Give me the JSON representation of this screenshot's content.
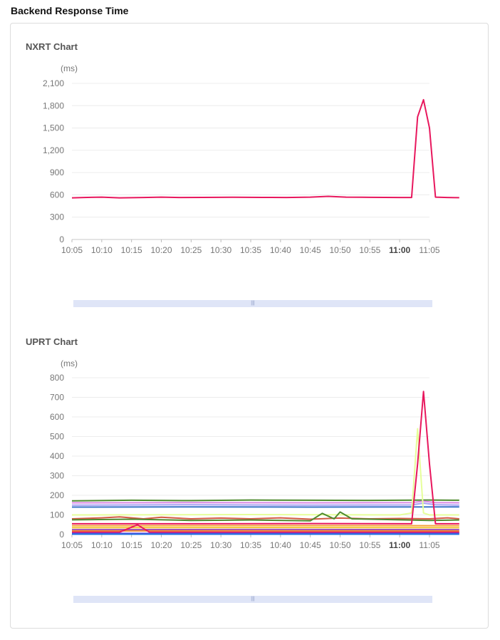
{
  "page": {
    "title": "Backend Response Time"
  },
  "chart_data": [
    {
      "type": "line",
      "title": "NXRT Chart",
      "unit_label": "(ms)",
      "x": [
        "10:05",
        "10:10",
        "10:15",
        "10:20",
        "10:25",
        "10:30",
        "10:35",
        "10:40",
        "10:45",
        "10:50",
        "10:55",
        "11:00",
        "11:05"
      ],
      "x_highlight": "11:00",
      "y_ticks": [
        "0",
        "300",
        "600",
        "900",
        "1,200",
        "1,500",
        "1,800",
        "2,100"
      ],
      "ylim": [
        0,
        2100
      ],
      "grid": true,
      "series": [
        {
          "color": "#e8175d",
          "points": [
            [
              0,
              560
            ],
            [
              2,
              565
            ],
            [
              5,
              570
            ],
            [
              8,
              560
            ],
            [
              12,
              565
            ],
            [
              15,
              570
            ],
            [
              18,
              565
            ],
            [
              22,
              566
            ],
            [
              27,
              568
            ],
            [
              32,
              566
            ],
            [
              36,
              565
            ],
            [
              40,
              570
            ],
            [
              43,
              580
            ],
            [
              46,
              570
            ],
            [
              50,
              567
            ],
            [
              55,
              565
            ],
            [
              57,
              565
            ],
            [
              58,
              1650
            ],
            [
              59,
              1880
            ],
            [
              60,
              1500
            ],
            [
              61,
              570
            ],
            [
              63,
              565
            ],
            [
              65,
              562
            ]
          ]
        }
      ]
    },
    {
      "type": "line",
      "title": "UPRT Chart",
      "unit_label": "(ms)",
      "x": [
        "10:05",
        "10:10",
        "10:15",
        "10:20",
        "10:25",
        "10:30",
        "10:35",
        "10:40",
        "10:45",
        "10:50",
        "10:55",
        "11:00",
        "11:05"
      ],
      "x_highlight": "11:00",
      "y_ticks": [
        "0",
        "100",
        "200",
        "300",
        "400",
        "500",
        "600",
        "700",
        "800"
      ],
      "ylim": [
        0,
        800
      ],
      "grid": true,
      "series": [
        {
          "color": "#4e8a2e",
          "points": [
            [
              0,
              172
            ],
            [
              10,
              175
            ],
            [
              20,
              173
            ],
            [
              30,
              176
            ],
            [
              40,
              175
            ],
            [
              50,
              174
            ],
            [
              60,
              176
            ],
            [
              65,
              175
            ]
          ]
        },
        {
          "color": "#d987e3",
          "points": [
            [
              0,
              162
            ],
            [
              20,
              163
            ],
            [
              40,
              162
            ],
            [
              57,
              163
            ],
            [
              59,
              170
            ],
            [
              61,
              163
            ],
            [
              65,
              162
            ]
          ]
        },
        {
          "color": "#a9a2f2",
          "points": [
            [
              0,
              150
            ],
            [
              20,
              152
            ],
            [
              40,
              150
            ],
            [
              57,
              151
            ],
            [
              59,
              160
            ],
            [
              61,
              152
            ],
            [
              65,
              150
            ]
          ]
        },
        {
          "color": "#3e74c9",
          "points": [
            [
              0,
              140
            ],
            [
              20,
              141
            ],
            [
              40,
              140
            ],
            [
              65,
              141
            ]
          ]
        },
        {
          "color": "#e6ff9a",
          "points": [
            [
              0,
              100
            ],
            [
              30,
              102
            ],
            [
              55,
              100
            ],
            [
              57,
              110
            ],
            [
              58,
              540
            ],
            [
              59,
              110
            ],
            [
              60,
              100
            ],
            [
              65,
              100
            ]
          ]
        },
        {
          "color": "#d25b43",
          "points": [
            [
              0,
              80
            ],
            [
              5,
              85
            ],
            [
              8,
              90
            ],
            [
              12,
              80
            ],
            [
              15,
              88
            ],
            [
              20,
              80
            ],
            [
              25,
              84
            ],
            [
              30,
              80
            ],
            [
              35,
              85
            ],
            [
              40,
              78
            ],
            [
              45,
              84
            ],
            [
              50,
              80
            ],
            [
              55,
              82
            ],
            [
              60,
              80
            ],
            [
              63,
              85
            ],
            [
              65,
              80
            ]
          ]
        },
        {
          "color": "#4e8a2e",
          "points": [
            [
              0,
              75
            ],
            [
              10,
              78
            ],
            [
              20,
              72
            ],
            [
              30,
              74
            ],
            [
              40,
              70
            ],
            [
              42,
              108
            ],
            [
              44,
              80
            ],
            [
              45,
              115
            ],
            [
              47,
              80
            ],
            [
              55,
              75
            ],
            [
              60,
              72
            ],
            [
              65,
              74
            ]
          ]
        },
        {
          "color": "#e8175d",
          "points": [
            [
              0,
              55
            ],
            [
              20,
              55
            ],
            [
              40,
              56
            ],
            [
              57,
              55
            ],
            [
              58,
              360
            ],
            [
              59,
              730
            ],
            [
              60,
              360
            ],
            [
              61,
              55
            ],
            [
              65,
              55
            ]
          ]
        },
        {
          "color": "#f4a33a",
          "points": [
            [
              0,
              45
            ],
            [
              30,
              46
            ],
            [
              65,
              45
            ]
          ]
        },
        {
          "color": "#f2c230",
          "points": [
            [
              0,
              35
            ],
            [
              30,
              36
            ],
            [
              65,
              35
            ]
          ]
        },
        {
          "color": "#9e4fb8",
          "points": [
            [
              0,
              25
            ],
            [
              30,
              26
            ],
            [
              65,
              25
            ]
          ]
        },
        {
          "color": "#f08a36",
          "points": [
            [
              0,
              18
            ],
            [
              30,
              19
            ],
            [
              65,
              18
            ]
          ]
        },
        {
          "color": "#e8175d",
          "points": [
            [
              0,
              12
            ],
            [
              8,
              12
            ],
            [
              11,
              50
            ],
            [
              13,
              12
            ],
            [
              30,
              12
            ],
            [
              65,
              12
            ]
          ]
        },
        {
          "color": "#6f45d8",
          "points": [
            [
              0,
              6
            ],
            [
              30,
              6
            ],
            [
              65,
              6
            ]
          ]
        },
        {
          "color": "#1f6fe0",
          "points": [
            [
              0,
              2
            ],
            [
              65,
              2
            ]
          ]
        }
      ]
    }
  ]
}
